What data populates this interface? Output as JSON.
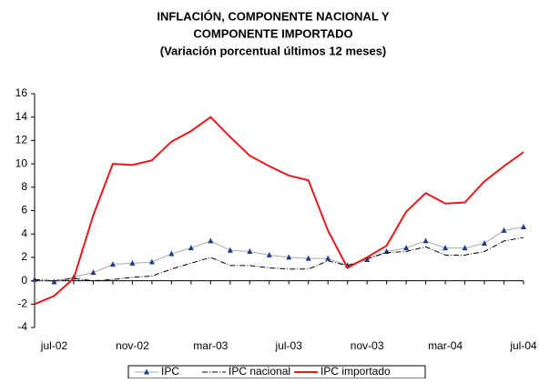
{
  "chart_data": {
    "type": "line",
    "title": [
      "INFLACIÓN, COMPONENTE NACIONAL Y",
      "COMPONENTE IMPORTADO",
      "(Variación porcentual últimos 12 meses)"
    ],
    "categories": [
      null,
      "jul-02",
      null,
      null,
      null,
      "nov-02",
      null,
      null,
      null,
      "mar-03",
      null,
      null,
      null,
      "jul-03",
      null,
      null,
      null,
      "nov-03",
      null,
      null,
      null,
      "mar-04",
      null,
      null,
      null,
      "jul-04"
    ],
    "series": [
      {
        "name": "IPC",
        "color": "#1f3c88",
        "values": [
          0.1,
          -0.1,
          0.3,
          0.7,
          1.4,
          1.5,
          1.6,
          2.3,
          2.8,
          3.4,
          2.6,
          2.5,
          2.2,
          2.0,
          1.9,
          1.9,
          1.3,
          1.8,
          2.5,
          2.8,
          3.4,
          2.8,
          2.8,
          3.2,
          4.3,
          4.6
        ]
      },
      {
        "name": "IPC nacional",
        "color": "#000000",
        "values": [
          0.1,
          0.0,
          0.2,
          0.0,
          0.1,
          0.3,
          0.4,
          1.0,
          1.5,
          2.0,
          1.3,
          1.3,
          1.1,
          1.0,
          1.0,
          1.7,
          1.3,
          1.9,
          2.4,
          2.5,
          2.9,
          2.2,
          2.2,
          2.5,
          3.4,
          3.7
        ]
      },
      {
        "name": "IPC importado",
        "color": "#e8191c",
        "values": [
          -2.0,
          -1.3,
          0.2,
          5.6,
          10.0,
          9.9,
          10.3,
          11.9,
          12.8,
          14.0,
          12.3,
          10.7,
          9.8,
          9.0,
          8.6,
          4.3,
          1.1,
          2.0,
          3.0,
          5.9,
          7.5,
          6.6,
          6.7,
          8.5,
          9.8,
          11.0
        ]
      }
    ],
    "ylim": [
      -4,
      16
    ],
    "yticks": [
      -4,
      -2,
      0,
      2,
      4,
      6,
      8,
      10,
      12,
      14,
      16
    ],
    "grid": false
  }
}
